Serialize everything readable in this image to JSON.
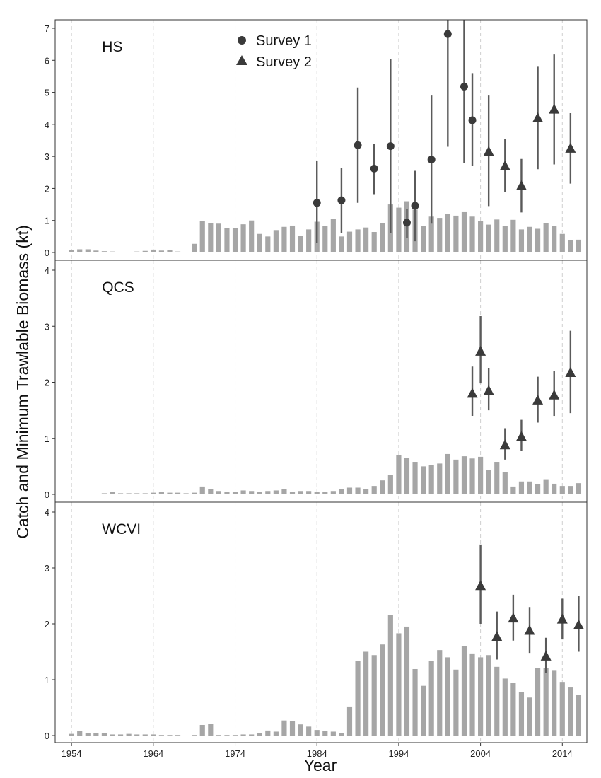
{
  "chart_data": {
    "type": "bar",
    "xlabel": "Year",
    "ylabel": "Catch and Minimum Trawlable Biomass (kt)",
    "x_ticks": [
      1954,
      1964,
      1974,
      1984,
      1994,
      2004,
      2014
    ],
    "x_range": [
      1952,
      2017
    ],
    "legend": {
      "location": "top-center of first panel",
      "entries": [
        {
          "name": "Survey 1",
          "marker": "circle"
        },
        {
          "name": "Survey 2",
          "marker": "triangle"
        }
      ]
    },
    "colors": {
      "bars": "#a6a6a6",
      "points": "#3a3a3a",
      "errorbars": "#5a5a5a",
      "grid": "#cfcfcf",
      "frame": "#333333"
    },
    "catch_years_start": 1954,
    "panels": [
      {
        "name": "HS",
        "ylim": [
          0,
          7.3
        ],
        "yticks": [
          0,
          1,
          2,
          3,
          4,
          5,
          6,
          7
        ],
        "catch": [
          0.07,
          0.1,
          0.1,
          0.06,
          0.04,
          0.03,
          0.02,
          0.02,
          0.03,
          0.05,
          0.09,
          0.06,
          0.07,
          0.03,
          0.02,
          0.27,
          0.98,
          0.92,
          0.9,
          0.76,
          0.76,
          0.88,
          1.0,
          0.58,
          0.5,
          0.7,
          0.8,
          0.84,
          0.52,
          0.72,
          0.96,
          0.82,
          1.04,
          0.5,
          0.65,
          0.72,
          0.78,
          0.64,
          0.92,
          1.5,
          1.4,
          1.6,
          1.34,
          0.82,
          1.12,
          1.08,
          1.2,
          1.15,
          1.26,
          1.12,
          0.98,
          0.87,
          1.03,
          0.82,
          1.02,
          0.72,
          0.8,
          0.74,
          0.92,
          0.83,
          0.58,
          0.38,
          0.4
        ],
        "survey1": [
          {
            "year": 1984,
            "value": 1.55,
            "lo": 0.3,
            "hi": 2.85
          },
          {
            "year": 1987,
            "value": 1.63,
            "lo": 0.6,
            "hi": 2.65
          },
          {
            "year": 1989,
            "value": 3.35,
            "lo": 1.55,
            "hi": 5.15
          },
          {
            "year": 1991,
            "value": 2.62,
            "lo": 1.8,
            "hi": 3.4
          },
          {
            "year": 1993,
            "value": 3.32,
            "lo": 0.6,
            "hi": 6.05
          },
          {
            "year": 1995,
            "value": 0.93,
            "lo": 0.45,
            "hi": 1.35
          },
          {
            "year": 1996,
            "value": 1.46,
            "lo": 0.35,
            "hi": 2.55
          },
          {
            "year": 1998,
            "value": 2.9,
            "lo": 0.9,
            "hi": 4.9
          },
          {
            "year": 2000,
            "value": 6.82,
            "lo": 3.3,
            "hi": 7.6
          },
          {
            "year": 2002,
            "value": 5.18,
            "lo": 2.8,
            "hi": 7.6
          },
          {
            "year": 2003,
            "value": 4.13,
            "lo": 2.7,
            "hi": 5.6
          }
        ],
        "survey2": [
          {
            "year": 2005,
            "value": 3.15,
            "lo": 1.45,
            "hi": 4.9
          },
          {
            "year": 2007,
            "value": 2.7,
            "lo": 1.9,
            "hi": 3.55
          },
          {
            "year": 2009,
            "value": 2.08,
            "lo": 1.25,
            "hi": 2.92
          },
          {
            "year": 2011,
            "value": 4.2,
            "lo": 2.6,
            "hi": 5.8
          },
          {
            "year": 2013,
            "value": 4.47,
            "lo": 2.75,
            "hi": 6.18
          },
          {
            "year": 2015,
            "value": 3.25,
            "lo": 2.15,
            "hi": 4.35
          }
        ]
      },
      {
        "name": "QCS",
        "ylim": [
          0,
          4.15
        ],
        "yticks": [
          0,
          1,
          2,
          3,
          4
        ],
        "catch": [
          0.0,
          0.01,
          0.01,
          0.01,
          0.02,
          0.04,
          0.02,
          0.02,
          0.02,
          0.02,
          0.03,
          0.04,
          0.03,
          0.03,
          0.02,
          0.03,
          0.14,
          0.1,
          0.06,
          0.05,
          0.04,
          0.07,
          0.06,
          0.04,
          0.06,
          0.07,
          0.1,
          0.05,
          0.06,
          0.06,
          0.05,
          0.04,
          0.06,
          0.1,
          0.12,
          0.12,
          0.1,
          0.15,
          0.25,
          0.35,
          0.7,
          0.65,
          0.58,
          0.5,
          0.52,
          0.55,
          0.72,
          0.62,
          0.68,
          0.64,
          0.67,
          0.44,
          0.58,
          0.4,
          0.14,
          0.23,
          0.23,
          0.18,
          0.27,
          0.19,
          0.15,
          0.15,
          0.2
        ],
        "survey1": [],
        "survey2": [
          {
            "year": 2003,
            "value": 1.8,
            "lo": 1.4,
            "hi": 2.28
          },
          {
            "year": 2004,
            "value": 2.55,
            "lo": 1.98,
            "hi": 3.18
          },
          {
            "year": 2005,
            "value": 1.85,
            "lo": 1.5,
            "hi": 2.25
          },
          {
            "year": 2007,
            "value": 0.88,
            "lo": 0.62,
            "hi": 1.18
          },
          {
            "year": 2009,
            "value": 1.03,
            "lo": 0.77,
            "hi": 1.33
          },
          {
            "year": 2011,
            "value": 1.68,
            "lo": 1.28,
            "hi": 2.1
          },
          {
            "year": 2013,
            "value": 1.77,
            "lo": 1.4,
            "hi": 2.2
          },
          {
            "year": 2015,
            "value": 2.17,
            "lo": 1.45,
            "hi": 2.92
          }
        ]
      },
      {
        "name": "WCVI",
        "ylim": [
          0,
          4.15
        ],
        "yticks": [
          0,
          1,
          2,
          3,
          4
        ],
        "catch": [
          0.03,
          0.08,
          0.05,
          0.04,
          0.04,
          0.02,
          0.02,
          0.03,
          0.02,
          0.02,
          0.02,
          0.01,
          0.01,
          0.01,
          0.0,
          0.01,
          0.19,
          0.21,
          0.01,
          0.01,
          0.01,
          0.02,
          0.02,
          0.04,
          0.09,
          0.07,
          0.27,
          0.26,
          0.2,
          0.16,
          0.1,
          0.08,
          0.07,
          0.05,
          0.52,
          1.33,
          1.5,
          1.44,
          1.63,
          2.16,
          1.83,
          1.95,
          1.19,
          0.89,
          1.34,
          1.53,
          1.4,
          1.18,
          1.6,
          1.47,
          1.4,
          1.44,
          1.23,
          1.02,
          0.94,
          0.78,
          0.68,
          1.21,
          1.21,
          1.16,
          0.96,
          0.86,
          0.73
        ],
        "survey1": [],
        "survey2": [
          {
            "year": 2004,
            "value": 2.68,
            "lo": 2.0,
            "hi": 3.42
          },
          {
            "year": 2006,
            "value": 1.77,
            "lo": 1.36,
            "hi": 2.22
          },
          {
            "year": 2008,
            "value": 2.1,
            "lo": 1.7,
            "hi": 2.52
          },
          {
            "year": 2010,
            "value": 1.88,
            "lo": 1.48,
            "hi": 2.3
          },
          {
            "year": 2012,
            "value": 1.42,
            "lo": 1.12,
            "hi": 1.75
          },
          {
            "year": 2014,
            "value": 2.08,
            "lo": 1.72,
            "hi": 2.45
          },
          {
            "year": 2016,
            "value": 1.98,
            "lo": 1.5,
            "hi": 2.5
          }
        ]
      }
    ]
  }
}
